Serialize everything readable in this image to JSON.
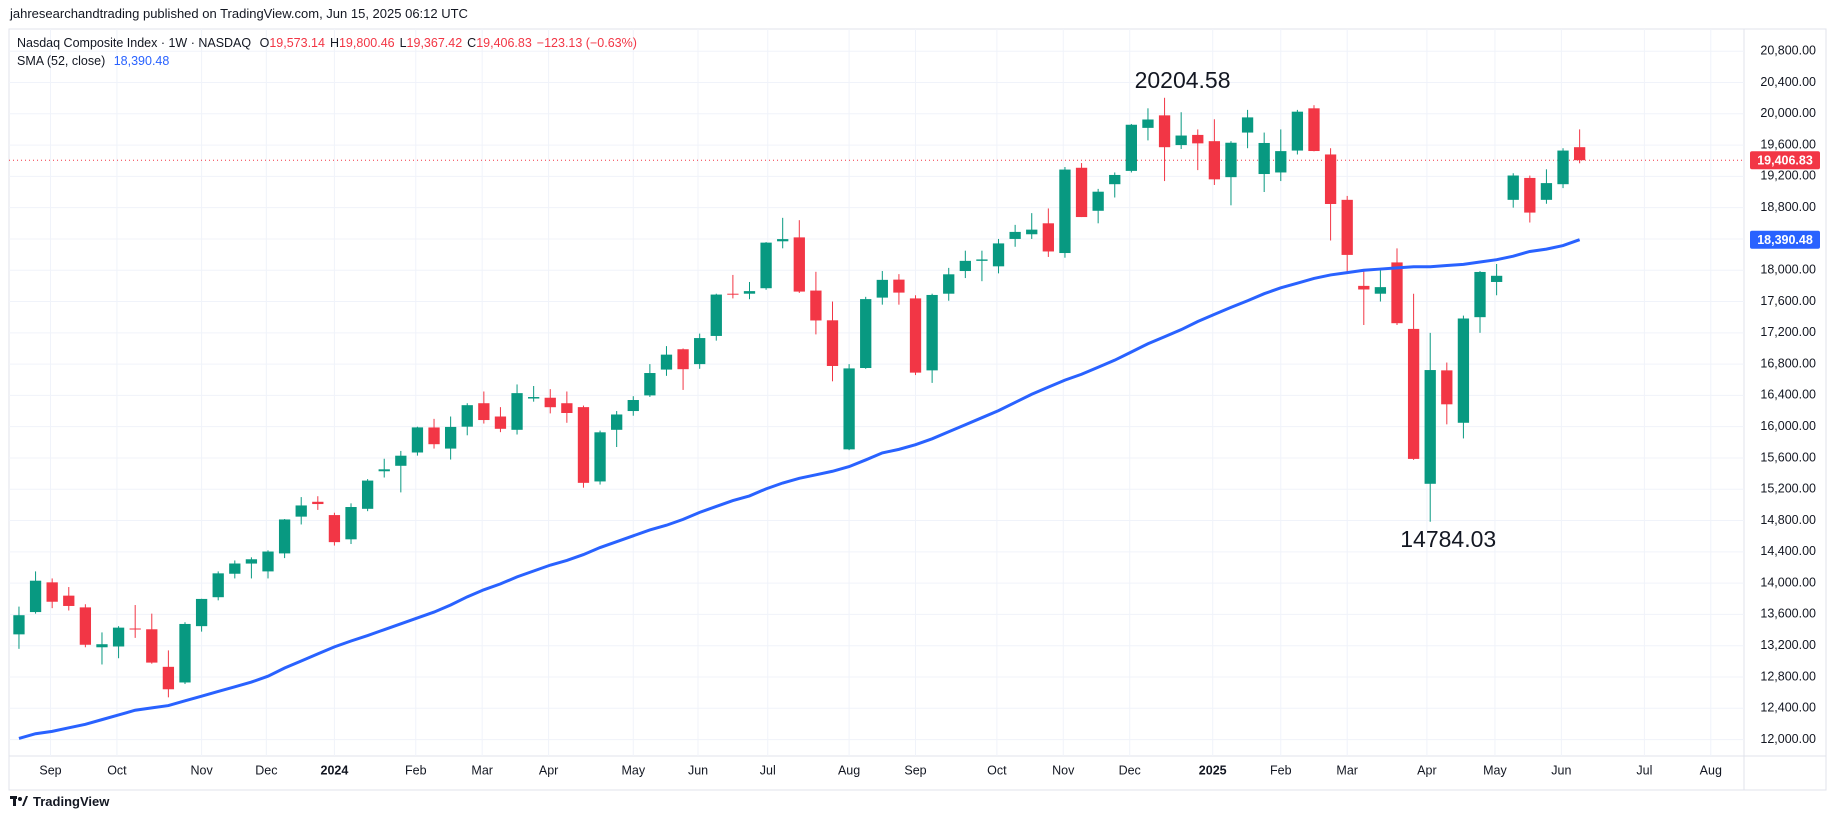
{
  "header": {
    "publisher": "jahresearchandtrading published on TradingView.com, Jun 15, 2025 06:12 UTC"
  },
  "footer": {
    "brand": "TradingView"
  },
  "chart_data": {
    "type": "candlestick",
    "symbol_legend": "Nasdaq Composite Index · 1W · NASDAQ",
    "ohlc_legend": [
      {
        "key": "O",
        "text": "19,573.14"
      },
      {
        "key": "H",
        "text": "19,800.46"
      },
      {
        "key": "L",
        "text": "19,367.42"
      },
      {
        "key": "C",
        "text": "19,406.83"
      }
    ],
    "change_legend": "−123.13 (−0.63%)",
    "candles": {
      "up_color": "#089981",
      "down_color": "#f23645",
      "open": [
        13345,
        13630,
        14010,
        13840,
        13690,
        13180,
        13190,
        13420,
        13410,
        12930,
        12730,
        13450,
        13820,
        14120,
        14250,
        14150,
        14380,
        14850,
        15040,
        14870,
        14560,
        14950,
        15430,
        15500,
        15670,
        15990,
        15720,
        16000,
        16300,
        16130,
        15960,
        16360,
        16370,
        16300,
        16250,
        15300,
        15960,
        16200,
        16400,
        16730,
        16990,
        16800,
        17160,
        17700,
        17700,
        17770,
        18370,
        18420,
        17740,
        17360,
        15710,
        16750,
        17650,
        17880,
        17640,
        16720,
        17700,
        17990,
        18120,
        18050,
        18400,
        18460,
        18600,
        18220,
        19310,
        18760,
        19100,
        19270,
        19820,
        19980,
        19600,
        19730,
        19650,
        19190,
        19760,
        19230,
        19250,
        19530,
        20070,
        19480,
        18900,
        17800,
        17700,
        18100,
        17250,
        15270,
        16720,
        16050,
        17400,
        17850,
        18900,
        19180,
        18900,
        19100,
        19573.14
      ],
      "high": [
        13700,
        14150,
        14060,
        13950,
        13730,
        13370,
        13450,
        13720,
        13610,
        13140,
        13500,
        13800,
        14150,
        14290,
        14330,
        14420,
        14820,
        15100,
        15111,
        14900,
        15020,
        15330,
        15590,
        15690,
        16000,
        16100,
        16130,
        16300,
        16450,
        16250,
        16540,
        16520,
        16480,
        16450,
        16270,
        15950,
        16200,
        16390,
        16800,
        17030,
        17000,
        17190,
        17700,
        17940,
        17850,
        18360,
        18670,
        18640,
        17980,
        17600,
        16800,
        17660,
        17990,
        17950,
        17680,
        17700,
        18030,
        18250,
        18250,
        18400,
        18580,
        18730,
        18790,
        19320,
        19370,
        19040,
        19250,
        19870,
        20070,
        20204.58,
        20020,
        19800,
        19930,
        19650,
        20050,
        19760,
        19800,
        20050,
        20110,
        19560,
        18950,
        18000,
        18000,
        18280,
        17700,
        17200,
        16820,
        17420,
        17990,
        18080,
        19240,
        19210,
        19290,
        19560,
        19800.46
      ],
      "low": [
        13160,
        13610,
        13680,
        13650,
        13180,
        12960,
        13040,
        13300,
        12970,
        12540,
        12710,
        13380,
        13780,
        14060,
        14060,
        14060,
        14320,
        14750,
        14936,
        14480,
        14500,
        14920,
        15350,
        15160,
        15630,
        15720,
        15580,
        15890,
        16040,
        15930,
        15900,
        16320,
        16170,
        16050,
        15220,
        15260,
        15740,
        16140,
        16380,
        16650,
        16470,
        16740,
        17100,
        17640,
        17630,
        17750,
        18280,
        17710,
        17180,
        16580,
        15700,
        16740,
        17560,
        17560,
        16660,
        16560,
        17610,
        17900,
        17860,
        17960,
        18300,
        18400,
        18170,
        18160,
        18680,
        18600,
        18930,
        19250,
        19660,
        19140,
        19550,
        19280,
        19090,
        18830,
        19560,
        19000,
        19140,
        19480,
        19520,
        18380,
        17970,
        17300,
        17600,
        17300,
        15575,
        14784.03,
        16030,
        15850,
        17200,
        17680,
        18800,
        18610,
        18850,
        19050,
        19367.42
      ],
      "close": [
        13590,
        14031,
        13762,
        13708,
        13212,
        13219,
        13431,
        13407,
        12984,
        12643,
        13478,
        13798,
        14125,
        14251,
        14305,
        14404,
        14814,
        14993,
        15011,
        14524,
        14973,
        15311,
        15455,
        15629,
        15991,
        15776,
        15997,
        16275,
        16085,
        15973,
        16429,
        16379,
        16249,
        16175,
        15282,
        15928,
        16156,
        16341,
        16686,
        16921,
        16735,
        17133,
        17689,
        17689,
        17733,
        18353,
        18398,
        17727,
        17358,
        16776,
        16745,
        17631,
        17877,
        17714,
        16691,
        17684,
        17948,
        18120,
        18138,
        18343,
        18490,
        18519,
        18240,
        19287,
        18680,
        19004,
        19218,
        19860,
        19927,
        19573,
        19722,
        19622,
        19162,
        19630,
        19954,
        19627,
        19523,
        20027,
        19524,
        18847,
        18196,
        17754,
        17784,
        17323,
        15588,
        16724,
        16286,
        17383,
        17978,
        17929,
        19211,
        18737,
        19114,
        19530,
        19406.83
      ]
    },
    "sma": {
      "name": "SMA (52, close)",
      "value_label": "18,390.48",
      "color": "#2962ff",
      "values": [
        12015,
        12075,
        12105,
        12150,
        12195,
        12255,
        12315,
        12375,
        12405,
        12435,
        12495,
        12555,
        12615,
        12675,
        12735,
        12810,
        12915,
        13005,
        13095,
        13185,
        13260,
        13330,
        13405,
        13480,
        13555,
        13630,
        13720,
        13825,
        13915,
        13990,
        14080,
        14155,
        14230,
        14290,
        14365,
        14455,
        14530,
        14605,
        14680,
        14740,
        14815,
        14905,
        14980,
        15055,
        15115,
        15205,
        15280,
        15340,
        15385,
        15430,
        15490,
        15575,
        15665,
        15710,
        15770,
        15845,
        15935,
        16025,
        16115,
        16205,
        16310,
        16415,
        16505,
        16595,
        16670,
        16760,
        16850,
        16955,
        17060,
        17150,
        17240,
        17345,
        17435,
        17525,
        17610,
        17700,
        17775,
        17835,
        17895,
        17940,
        17970,
        18000,
        18015,
        18030,
        18045,
        18045,
        18060,
        18075,
        18105,
        18135,
        18180,
        18240,
        18270,
        18315,
        18390.48
      ]
    },
    "price_labels": [
      {
        "value": 19406.83,
        "label": "19,406.83",
        "color": "#f23645",
        "price_line": true
      },
      {
        "value": 18390.48,
        "label": "18,390.48",
        "color": "#2962ff",
        "price_line": false
      }
    ],
    "annotations": [
      {
        "value": 20204.58,
        "label": "20204.58"
      },
      {
        "value": 14784.03,
        "label": "14784.03"
      }
    ],
    "xlim": [
      -0.6,
      103.9
    ],
    "xticks": [
      {
        "value": 1.9,
        "label": "Sep"
      },
      {
        "value": 5.9,
        "label": "Oct"
      },
      {
        "value": 11.0,
        "label": "Nov"
      },
      {
        "value": 14.9,
        "label": "Dec"
      },
      {
        "value": 19.0,
        "label": "2024"
      },
      {
        "value": 23.9,
        "label": "Feb"
      },
      {
        "value": 27.9,
        "label": "Mar"
      },
      {
        "value": 31.9,
        "label": "Apr"
      },
      {
        "value": 37.0,
        "label": "May"
      },
      {
        "value": 40.9,
        "label": "Jun"
      },
      {
        "value": 45.1,
        "label": "Jul"
      },
      {
        "value": 50.0,
        "label": "Aug"
      },
      {
        "value": 54.0,
        "label": "Sep"
      },
      {
        "value": 58.9,
        "label": "Oct"
      },
      {
        "value": 62.9,
        "label": "Nov"
      },
      {
        "value": 66.9,
        "label": "Dec"
      },
      {
        "value": 71.9,
        "label": "2025"
      },
      {
        "value": 76.0,
        "label": "Feb"
      },
      {
        "value": 80.0,
        "label": "Mar"
      },
      {
        "value": 84.8,
        "label": "Apr"
      },
      {
        "value": 88.9,
        "label": "May"
      },
      {
        "value": 92.9,
        "label": "Jun"
      },
      {
        "value": 97.9,
        "label": "Jul"
      },
      {
        "value": 101.9,
        "label": "Aug"
      }
    ],
    "ylim": [
      11790,
      21084
    ],
    "yticks": [
      {
        "value": 12000,
        "label": "12,000.00"
      },
      {
        "value": 12400,
        "label": "12,400.00"
      },
      {
        "value": 12800,
        "label": "12,800.00"
      },
      {
        "value": 13200,
        "label": "13,200.00"
      },
      {
        "value": 13600,
        "label": "13,600.00"
      },
      {
        "value": 14000,
        "label": "14,000.00"
      },
      {
        "value": 14400,
        "label": "14,400.00"
      },
      {
        "value": 14800,
        "label": "14,800.00"
      },
      {
        "value": 15200,
        "label": "15,200.00"
      },
      {
        "value": 15600,
        "label": "15,600.00"
      },
      {
        "value": 16000,
        "label": "16,000.00"
      },
      {
        "value": 16400,
        "label": "16,400.00"
      },
      {
        "value": 16800,
        "label": "16,800.00"
      },
      {
        "value": 17200,
        "label": "17,200.00"
      },
      {
        "value": 17600,
        "label": "17,600.00"
      },
      {
        "value": 18000,
        "label": "18,000.00"
      },
      {
        "value": 18400,
        "label": "18,400.00"
      },
      {
        "value": 18800,
        "label": "18,800.00"
      },
      {
        "value": 19200,
        "label": "19,200.00"
      },
      {
        "value": 19600,
        "label": "19,600.00"
      },
      {
        "value": 20000,
        "label": "20,000.00"
      },
      {
        "value": 20400,
        "label": "20,400.00"
      },
      {
        "value": 20800,
        "label": "20,800.00"
      }
    ],
    "grid": true
  }
}
